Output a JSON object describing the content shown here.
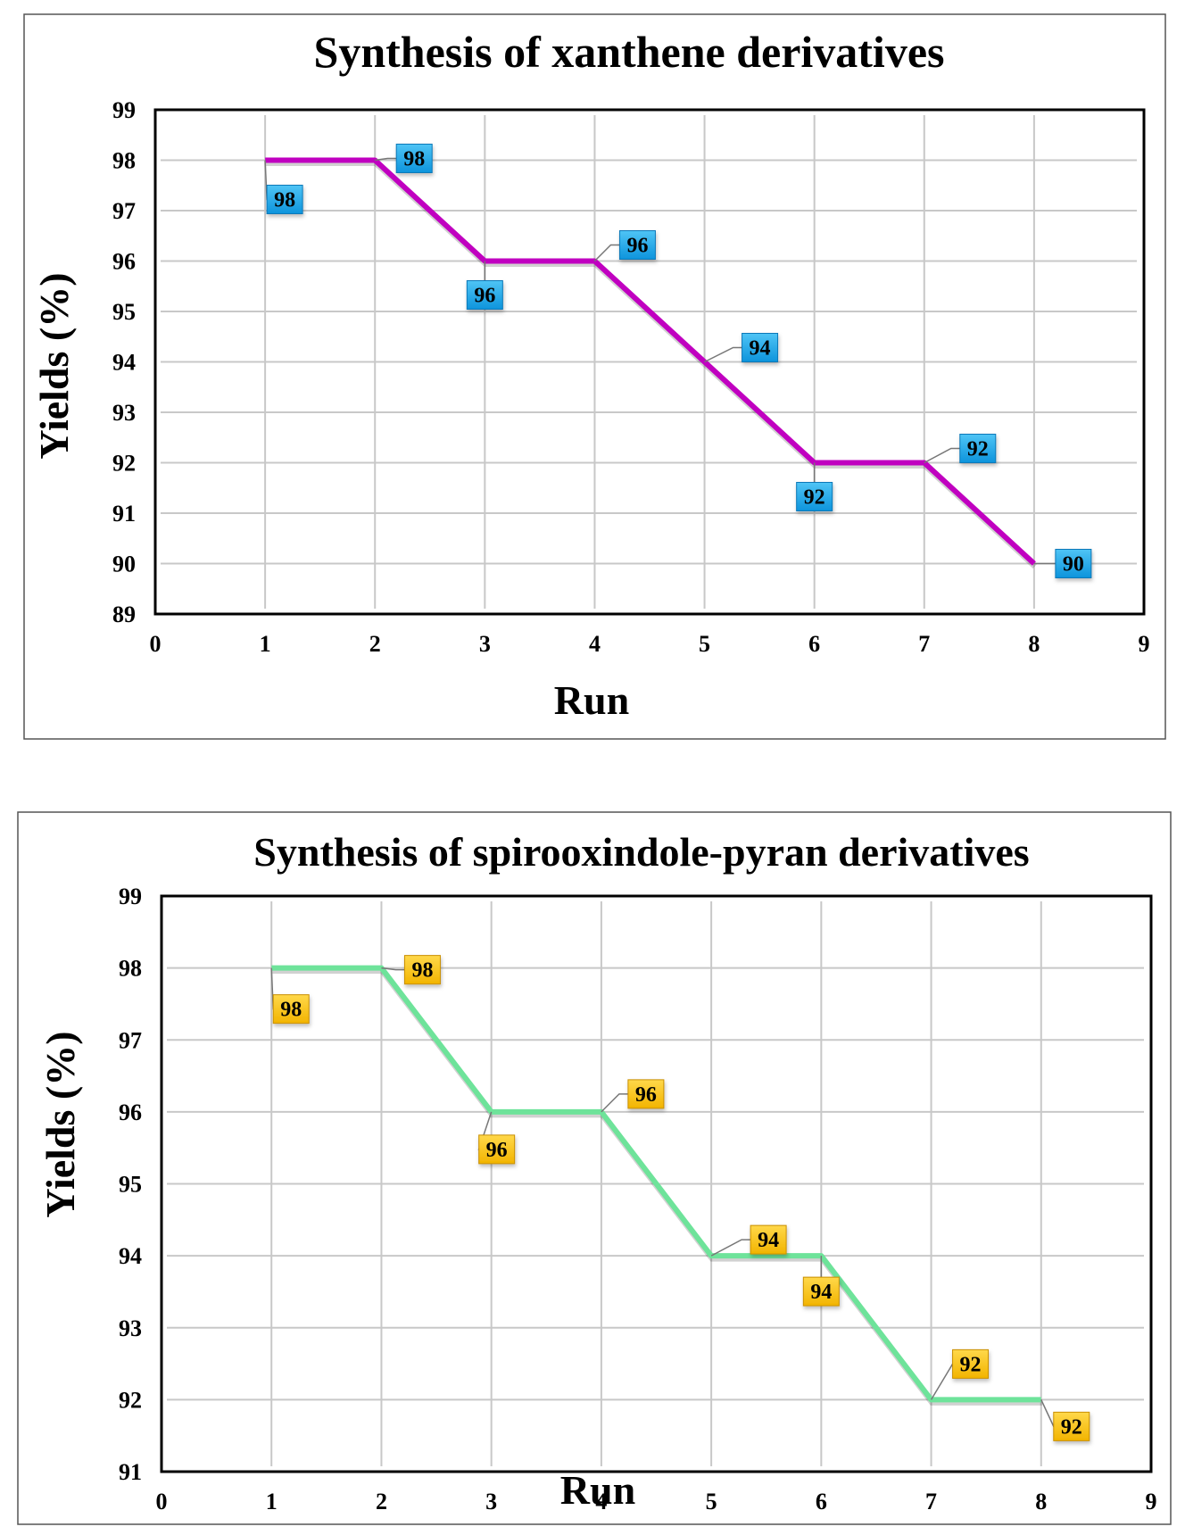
{
  "chart_data": [
    {
      "type": "line",
      "title": "Synthesis of xanthene derivatives",
      "xlabel": "Run",
      "ylabel": "Yields (%)",
      "xlim": [
        0,
        9
      ],
      "ylim": [
        89,
        99
      ],
      "x_ticks": [
        "0",
        "1",
        "2",
        "3",
        "4",
        "5",
        "6",
        "7",
        "8",
        "9"
      ],
      "y_ticks": [
        "89",
        "90",
        "91",
        "92",
        "93",
        "94",
        "95",
        "96",
        "97",
        "98",
        "99"
      ],
      "grid": true,
      "line_color": "#c000c0",
      "label_color": "#1ea7e8",
      "series": [
        {
          "name": "Yield",
          "x": [
            1,
            2,
            3,
            4,
            5,
            6,
            7,
            8
          ],
          "values": [
            98,
            98,
            96,
            96,
            94,
            92,
            92,
            90
          ]
        }
      ],
      "data_labels": [
        "98",
        "98",
        "96",
        "96",
        "94",
        "92",
        "92",
        "90"
      ]
    },
    {
      "type": "line",
      "title": "Synthesis of spirooxindole-pyran derivatives",
      "xlabel": "Run",
      "ylabel": "Yields (%)",
      "xlim": [
        0,
        9
      ],
      "ylim": [
        91,
        99
      ],
      "x_ticks": [
        "0",
        "1",
        "2",
        "3",
        "4",
        "5",
        "6",
        "7",
        "8",
        "9"
      ],
      "y_ticks": [
        "91",
        "92",
        "93",
        "94",
        "95",
        "96",
        "97",
        "98",
        "99"
      ],
      "grid": true,
      "line_color": "#6ee39a",
      "label_color": "#f8c20a",
      "series": [
        {
          "name": "Yield",
          "x": [
            1,
            2,
            3,
            4,
            5,
            6,
            7,
            8
          ],
          "values": [
            98,
            98,
            96,
            96,
            94,
            94,
            92,
            92
          ]
        }
      ],
      "data_labels": [
        "98",
        "98",
        "96",
        "96",
        "94",
        "94",
        "92",
        "92"
      ]
    }
  ]
}
